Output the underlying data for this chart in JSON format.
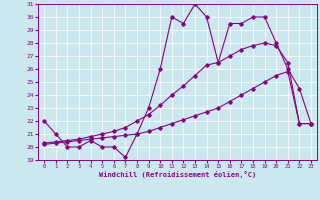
{
  "xlabel": "Windchill (Refroidissement éolien,°C)",
  "bg_color": "#cce8ef",
  "line_color": "#880088",
  "grid_color": "#ffffff",
  "xlim": [
    -0.5,
    23.5
  ],
  "ylim": [
    19,
    31
  ],
  "yticks": [
    19,
    20,
    21,
    22,
    23,
    24,
    25,
    26,
    27,
    28,
    29,
    30,
    31
  ],
  "xticks": [
    0,
    1,
    2,
    3,
    4,
    5,
    6,
    7,
    8,
    9,
    10,
    11,
    12,
    13,
    14,
    15,
    16,
    17,
    18,
    19,
    20,
    21,
    22,
    23
  ],
  "s1_x": [
    0,
    1,
    2,
    3,
    4,
    5,
    6,
    7,
    8,
    9,
    10,
    11,
    12,
    13,
    14,
    15,
    16,
    17,
    18,
    19,
    20,
    21,
    22,
    23
  ],
  "s1_y": [
    22.0,
    21.0,
    20.0,
    20.0,
    20.5,
    20.0,
    20.0,
    19.2,
    21.0,
    23.0,
    26.0,
    30.0,
    29.5,
    31.0,
    30.0,
    26.5,
    29.5,
    29.5,
    30.0,
    30.0,
    28.0,
    26.0,
    24.5,
    21.8
  ],
  "s2_x": [
    0,
    1,
    2,
    3,
    4,
    5,
    6,
    7,
    8,
    9,
    10,
    11,
    12,
    13,
    14,
    15,
    16,
    17,
    18,
    19,
    20,
    21,
    22,
    23
  ],
  "s2_y": [
    20.3,
    20.4,
    20.5,
    20.6,
    20.8,
    21.0,
    21.2,
    21.5,
    22.0,
    22.5,
    23.2,
    24.0,
    24.7,
    25.5,
    26.3,
    26.5,
    27.0,
    27.5,
    27.8,
    28.0,
    27.8,
    26.5,
    21.8,
    21.8
  ],
  "s3_x": [
    0,
    1,
    2,
    3,
    4,
    5,
    6,
    7,
    8,
    9,
    10,
    11,
    12,
    13,
    14,
    15,
    16,
    17,
    18,
    19,
    20,
    21,
    22,
    23
  ],
  "s3_y": [
    20.2,
    20.3,
    20.4,
    20.5,
    20.6,
    20.7,
    20.8,
    20.9,
    21.0,
    21.2,
    21.5,
    21.8,
    22.1,
    22.4,
    22.7,
    23.0,
    23.5,
    24.0,
    24.5,
    25.0,
    25.5,
    25.8,
    21.8,
    21.8
  ]
}
